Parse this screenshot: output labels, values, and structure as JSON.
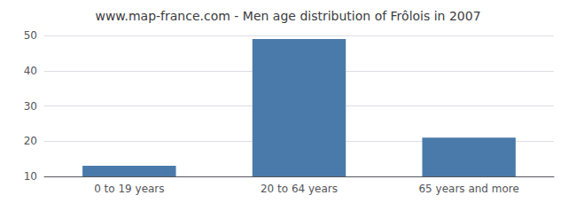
{
  "chart_data": {
    "type": "bar",
    "title": "www.map-france.com - Men age distribution of Frôlois in 2007",
    "categories": [
      "0 to 19 years",
      "20 to 64 years",
      "65 years and more"
    ],
    "values": [
      13,
      49,
      21
    ],
    "color": "#4a7aaa",
    "ylim": [
      10,
      50
    ],
    "yticks": [
      10,
      20,
      30,
      40,
      50
    ],
    "grid": true
  }
}
